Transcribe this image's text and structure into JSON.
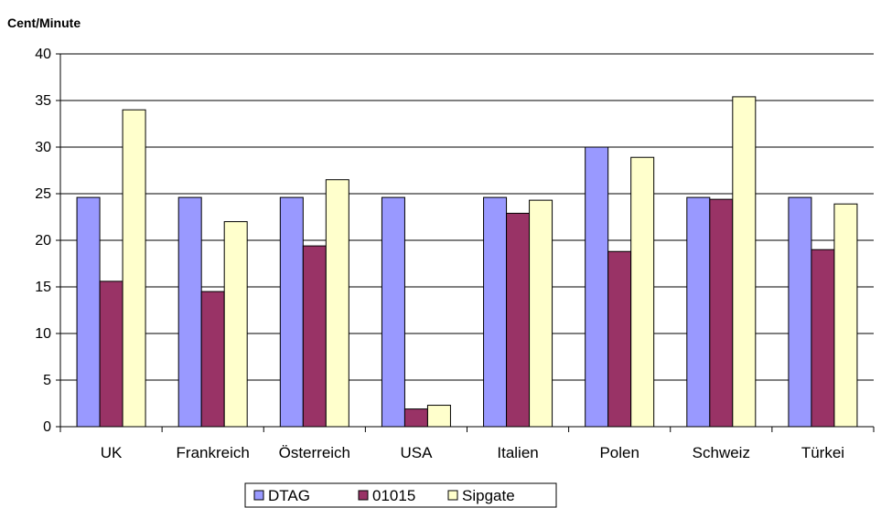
{
  "chart_data": {
    "type": "bar",
    "title": "",
    "xlabel": "",
    "ylabel": "Cent/Minute",
    "ylim": [
      0,
      40
    ],
    "yticks": [
      0,
      5,
      10,
      15,
      20,
      25,
      30,
      35,
      40
    ],
    "grid": true,
    "legend_position": "bottom",
    "categories": [
      "UK",
      "Frankreich",
      "Österreich",
      "USA",
      "Italien",
      "Polen",
      "Schweiz",
      "Türkei"
    ],
    "series": [
      {
        "name": "DTAG",
        "color": "#9999ff",
        "values": [
          24.6,
          24.6,
          24.6,
          24.6,
          24.6,
          30.0,
          24.6,
          24.6
        ]
      },
      {
        "name": "01015",
        "color": "#993366",
        "values": [
          15.6,
          14.5,
          19.4,
          1.9,
          22.9,
          18.8,
          24.4,
          19.0
        ]
      },
      {
        "name": "Sipgate",
        "color": "#ffffcc",
        "values": [
          34.0,
          22.0,
          26.5,
          2.3,
          24.3,
          28.9,
          35.4,
          23.9
        ]
      }
    ]
  }
}
